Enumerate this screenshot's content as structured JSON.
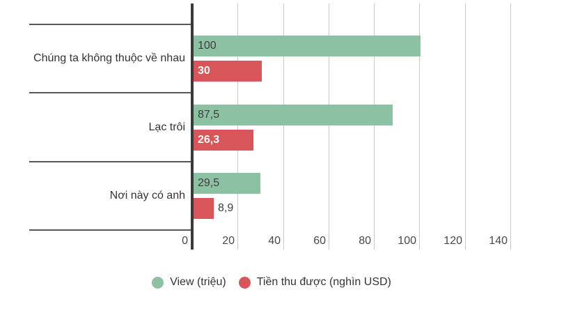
{
  "chart_data": {
    "type": "bar",
    "orientation": "horizontal",
    "title": "",
    "categories": [
      "Chúng ta không thuộc về nhau",
      "Lạc trôi",
      "Nơi này có anh"
    ],
    "series": [
      {
        "name": "View (triệu)",
        "color": "#8cc2a3",
        "label_color": "#3d3d3d",
        "label_bold": false,
        "values": [
          100,
          87.5,
          29.5
        ],
        "value_labels": [
          "100",
          "87,5",
          "29,5"
        ]
      },
      {
        "name": "Tiền thu được (nghìn USD)",
        "color": "#d85559",
        "label_color": "#ffffff",
        "label_bold": true,
        "values": [
          30,
          26.3,
          8.9
        ],
        "value_labels": [
          "30",
          "26,3",
          "8,9"
        ]
      }
    ],
    "x_ticks": [
      0,
      20,
      40,
      60,
      80,
      100,
      120,
      140
    ],
    "x_tick_labels": [
      "0",
      "20",
      "40",
      "60",
      "80",
      "100",
      "120",
      "140"
    ],
    "xlim": [
      0,
      140
    ],
    "grid": true,
    "legend_position": "bottom"
  },
  "colors": {
    "axis": "#3a3a3a",
    "gridline": "#c9c9c9",
    "separator": "#565656",
    "category_text": "#333333",
    "tick_text": "#474747"
  }
}
